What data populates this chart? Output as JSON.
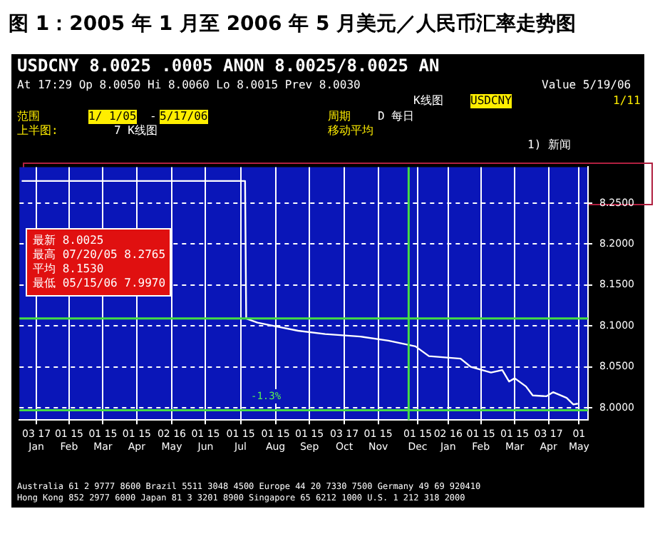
{
  "chart_data": {
    "type": "line",
    "title": "图 1：2005 年 1 月至 2006 年 5 月美元／人民币汇率走势图",
    "x": [
      "2005-01-03",
      "2005-03-01",
      "2005-05-02",
      "2005-07-20",
      "2005-07-21",
      "2005-07-31",
      "2005-08-18",
      "2005-09-05",
      "2005-09-29",
      "2005-10-30",
      "2005-11-24",
      "2005-12-18",
      "2005-12-30",
      "2006-01-27",
      "2006-02-05",
      "2006-02-23",
      "2006-03-05",
      "2006-03-11",
      "2006-03-16",
      "2006-03-26",
      "2006-04-01",
      "2006-04-13",
      "2006-04-19",
      "2006-05-01",
      "2006-05-07",
      "2006-05-11"
    ],
    "series": [
      {
        "color": "#ffffff",
        "values": [
          8.277,
          8.277,
          8.277,
          8.277,
          8.109,
          8.104,
          8.099,
          8.094,
          8.09,
          8.087,
          8.082,
          8.075,
          8.063,
          8.06,
          8.05,
          8.043,
          8.046,
          8.032,
          8.036,
          8.026,
          8.015,
          8.014,
          8.019,
          8.012,
          8.004,
          8.005
        ]
      }
    ],
    "xlim": [
      "2005-01-01",
      "2006-05-20"
    ],
    "xticks": [
      {
        "value": "2005-01-16",
        "label": "Jan"
      },
      {
        "value": "2005-02-14",
        "label": "Feb"
      },
      {
        "value": "2005-03-16",
        "label": "Mar"
      },
      {
        "value": "2005-04-15",
        "label": "Apr"
      },
      {
        "value": "2005-05-16",
        "label": "May"
      },
      {
        "value": "2005-06-15",
        "label": "Jun"
      },
      {
        "value": "2005-07-16",
        "label": "Jul"
      },
      {
        "value": "2005-08-16",
        "label": "Aug"
      },
      {
        "value": "2005-09-15",
        "label": "Sep"
      },
      {
        "value": "2005-10-16",
        "label": "Oct"
      },
      {
        "value": "2005-11-15",
        "label": "Nov"
      },
      {
        "value": "2005-12-20",
        "label": "Dec"
      },
      {
        "value": "2006-01-16",
        "label": "Jan"
      },
      {
        "value": "2006-02-14",
        "label": "Feb"
      },
      {
        "value": "2006-03-16",
        "label": "Mar"
      },
      {
        "value": "2006-04-15",
        "label": "Apr"
      },
      {
        "value": "2006-05-12",
        "label": "May"
      }
    ],
    "ylim": [
      7.985,
      8.294
    ],
    "yticks": [
      {
        "value": 8.0,
        "label": "8.0000"
      },
      {
        "value": 8.05,
        "label": "8.0500"
      },
      {
        "value": 8.1,
        "label": "8.1000"
      },
      {
        "value": 8.15,
        "label": "8.1500"
      },
      {
        "value": 8.2,
        "label": "8.2000"
      },
      {
        "value": 8.25,
        "label": "8.2500"
      }
    ],
    "grid": true,
    "legend": false,
    "marker": "none",
    "line_style": "solid",
    "ref_lines": [
      {
        "axis": "y",
        "value": 8.109,
        "color": "#44dd44"
      },
      {
        "axis": "y",
        "value": 7.997,
        "color": "#44dd44"
      },
      {
        "axis": "x",
        "value": "2005-12-12",
        "color": "#44dd44"
      }
    ],
    "annotations": [
      "USDCNY  8.0025   .0005  ANON 8.0025/8.0025 AN",
      "At 17:29 Op 8.0050  Hi 8.0060  Lo 8.0015  Prev 8.0030",
      "Value 5/19/06",
      "K线图",
      "USDCNY",
      "1/11",
      "范围",
      "1/ 1/05",
      "-",
      "5/17/06",
      "周期",
      "D 每日",
      "上半图:",
      "7 K线图",
      "移动平均",
      "1) 新闻",
      "最新  8.0025",
      "最高  07/20/05 8.2765",
      "平均  8.1530",
      "最低  05/15/06 7.9970",
      "Australia 61 2 9777 8600   Brazil 5511 3048 4500   Europe 44 20 7330 7500   Germany 49 69 920410",
      "Hong Kong 852 2977 6000  Japan 81 3 3201 8900  Singapore 65 6212 1000  U.S. 1 212 318 2000",
      "-1.3%",
      "03 17",
      "01 15",
      "01 15",
      "01 15",
      "02 16",
      "01 15",
      "01 15",
      "01 15",
      "01 15",
      "03 17",
      "01 15",
      "01 15",
      "02 16",
      "01 15",
      "01 15",
      "03 17",
      "01"
    ]
  }
}
